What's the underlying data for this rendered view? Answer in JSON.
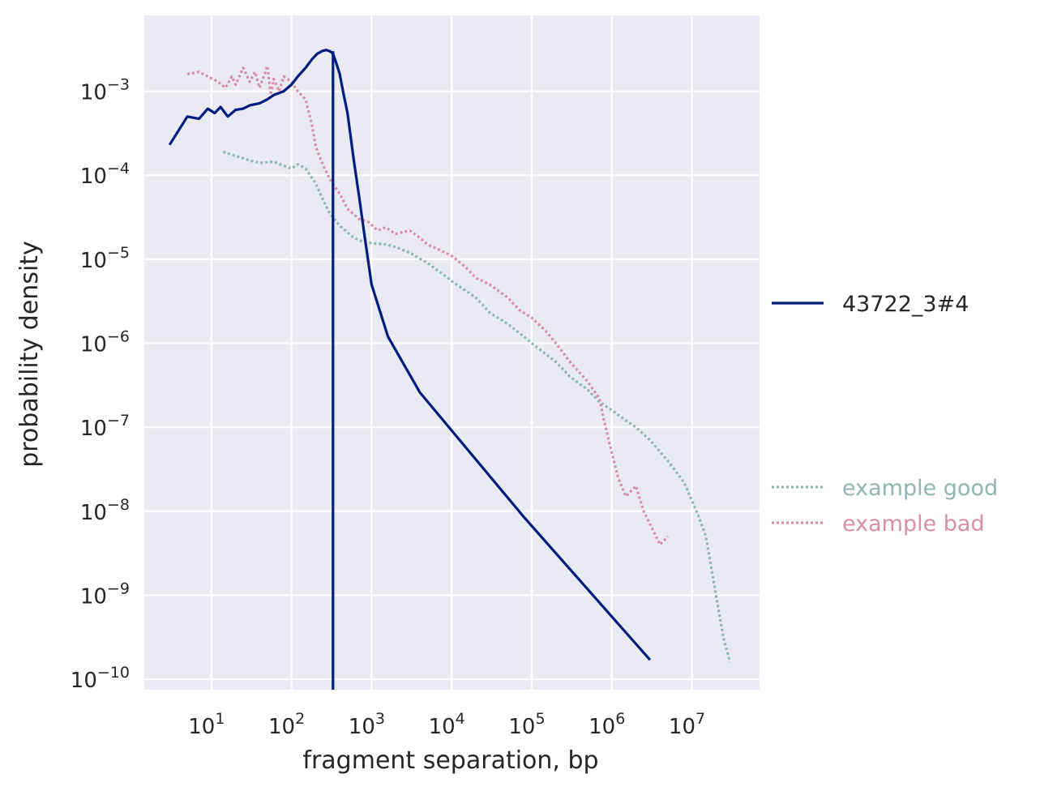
{
  "chart_data": {
    "type": "line",
    "xlabel": "fragment separation, bp",
    "ylabel": "probability density",
    "xscale": "log",
    "yscale": "log",
    "xlim": [
      1.45,
      70000000
    ],
    "ylim": [
      7.5e-11,
      0.008
    ],
    "grid": true,
    "x_ticks": [
      {
        "base": "10",
        "exp": "1",
        "value": 10
      },
      {
        "base": "10",
        "exp": "2",
        "value": 100
      },
      {
        "base": "10",
        "exp": "3",
        "value": 1000
      },
      {
        "base": "10",
        "exp": "4",
        "value": 10000
      },
      {
        "base": "10",
        "exp": "5",
        "value": 100000
      },
      {
        "base": "10",
        "exp": "6",
        "value": 1000000
      },
      {
        "base": "10",
        "exp": "7",
        "value": 10000000
      }
    ],
    "y_ticks": [
      {
        "base": "10",
        "exp": "−10",
        "value": 1e-10
      },
      {
        "base": "10",
        "exp": "−9",
        "value": 1e-09
      },
      {
        "base": "10",
        "exp": "−8",
        "value": 1e-08
      },
      {
        "base": "10",
        "exp": "−7",
        "value": 1e-07
      },
      {
        "base": "10",
        "exp": "−6",
        "value": 1e-06
      },
      {
        "base": "10",
        "exp": "−5",
        "value": 1e-05
      },
      {
        "base": "10",
        "exp": "−4",
        "value": 0.0001
      },
      {
        "base": "10",
        "exp": "−3",
        "value": 0.001
      }
    ],
    "series": [
      {
        "name": "43722_3#4",
        "color": "#001c7f",
        "style": "solid",
        "legend_group": "top",
        "x": [
          3,
          5,
          7,
          9,
          11,
          13,
          16,
          20,
          25,
          30,
          40,
          50,
          60,
          80,
          100,
          120,
          150,
          180,
          210,
          240,
          270,
          300,
          330,
          360,
          400,
          450,
          500,
          600,
          700,
          800,
          1000,
          1600,
          4000,
          80000,
          3000000
        ],
        "y": [
          0.00023,
          0.0005,
          0.00047,
          0.00062,
          0.00055,
          0.00065,
          0.0005,
          0.0006,
          0.00062,
          0.00068,
          0.00072,
          0.0008,
          0.0009,
          0.001,
          0.0012,
          0.0015,
          0.0019,
          0.0024,
          0.0028,
          0.003,
          0.0031,
          0.003,
          0.0028,
          0.0022,
          0.0016,
          0.0009,
          0.00055,
          0.00015,
          5.5e-05,
          2.2e-05,
          5e-06,
          1.2e-06,
          2.6e-07,
          8.5e-09,
          1.7e-10
        ]
      },
      {
        "name": "43722_3#4 cutoff",
        "color": "#001c7f",
        "style": "solid",
        "legend_group": "none",
        "x": [
          330,
          330
        ],
        "y": [
          7.5e-11,
          0.003
        ]
      },
      {
        "name": "example good",
        "color": "#8fb6b0",
        "style": "dotted",
        "legend_group": "bottom",
        "x": [
          14,
          20,
          30,
          40,
          60,
          80,
          100,
          120,
          150,
          200,
          250,
          300,
          400,
          600,
          800,
          1000,
          1500,
          2000,
          3000,
          5000,
          8000,
          10000,
          20000,
          30000,
          50000,
          80000,
          100000,
          200000,
          300000,
          500000,
          700000,
          1000000,
          1500000,
          2000000,
          3000000,
          5000000,
          8000000,
          12000000,
          15000000,
          20000000,
          25000000,
          30000000
        ],
        "y": [
          0.00019,
          0.00017,
          0.00015,
          0.00014,
          0.000145,
          0.00013,
          0.00012,
          0.000135,
          0.00012,
          8e-05,
          5e-05,
          3.5e-05,
          2.5e-05,
          1.8e-05,
          1.6e-05,
          1.55e-05,
          1.5e-05,
          1.4e-05,
          1.2e-05,
          9e-06,
          6.5e-06,
          5.5e-06,
          3.5e-06,
          2.3e-06,
          1.7e-06,
          1.2e-06,
          1e-06,
          6e-07,
          4e-07,
          2.8e-07,
          2e-07,
          1.6e-07,
          1.2e-07,
          1e-07,
          7e-08,
          4e-08,
          2.2e-08,
          9e-09,
          5e-09,
          1e-09,
          3e-10,
          1.6e-10
        ]
      },
      {
        "name": "example bad",
        "color": "#d68ea9",
        "style": "dotted",
        "legend_group": "bottom",
        "x": [
          5,
          7,
          9,
          12,
          15,
          18,
          20,
          25,
          30,
          35,
          40,
          50,
          55,
          60,
          70,
          80,
          100,
          120,
          150,
          180,
          200,
          250,
          300,
          400,
          500,
          700,
          900,
          1200,
          1500,
          2000,
          3000,
          4000,
          5000,
          7000,
          10000,
          15000,
          20000,
          30000,
          50000,
          70000,
          100000,
          150000,
          200000,
          300000,
          500000,
          700000,
          800000,
          1000000,
          1200000,
          1500000,
          2000000,
          2500000,
          3000000,
          4000000,
          5000000
        ],
        "y": [
          0.0016,
          0.0017,
          0.0015,
          0.0013,
          0.0011,
          0.0015,
          0.0012,
          0.0019,
          0.0013,
          0.0017,
          0.0011,
          0.002,
          0.0009,
          0.0014,
          0.001,
          0.0015,
          0.0013,
          0.001,
          0.0008,
          0.0004,
          0.00022,
          0.00013,
          9e-05,
          6e-05,
          4e-05,
          3e-05,
          2.8e-05,
          2.2e-05,
          2.4e-05,
          2e-05,
          2.2e-05,
          1.8e-05,
          1.5e-05,
          1.3e-05,
          1.1e-05,
          8e-06,
          6e-06,
          5e-06,
          3.5e-06,
          2.5e-06,
          2e-06,
          1.4e-06,
          1e-06,
          6e-07,
          3.5e-07,
          2.2e-07,
          1.2e-07,
          5e-08,
          2.5e-08,
          1.5e-08,
          2e-08,
          1e-08,
          7e-09,
          4e-09,
          5e-09
        ]
      }
    ],
    "legend": {
      "placement": "right",
      "top_entries": [
        "43722_3#4"
      ],
      "bottom_entries": [
        "example good",
        "example bad"
      ]
    }
  }
}
